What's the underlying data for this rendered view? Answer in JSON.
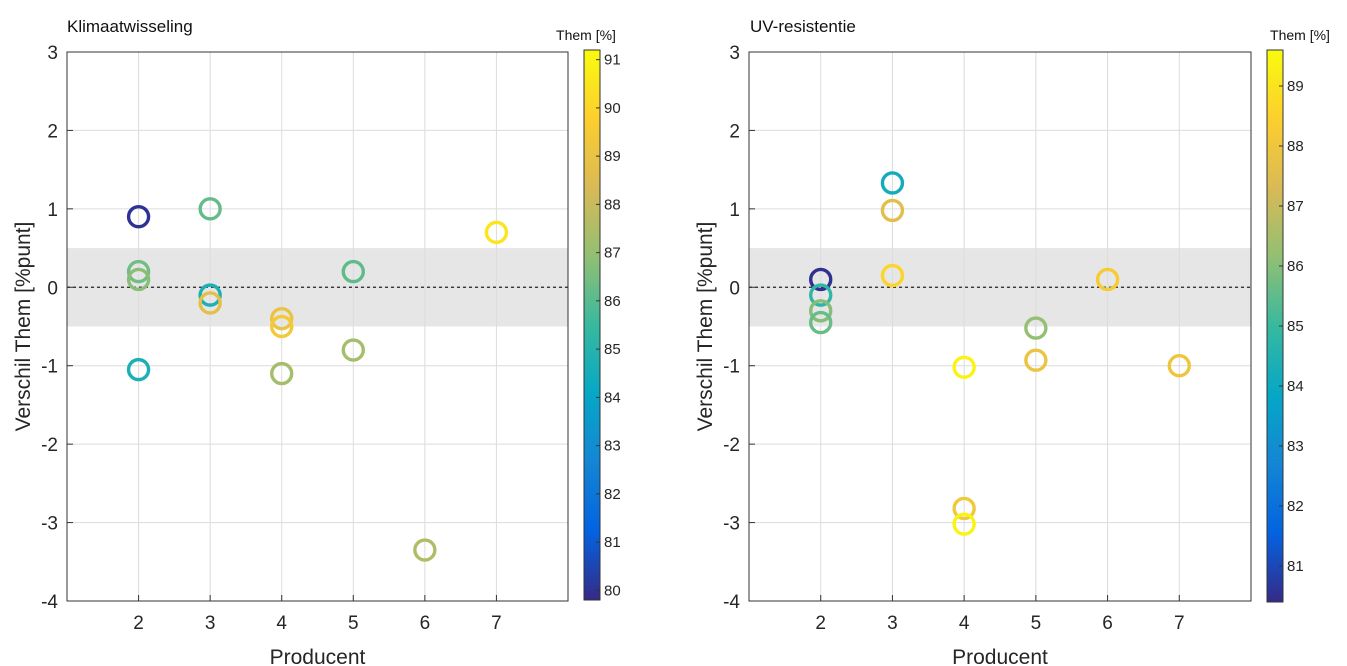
{
  "chart_data": [
    {
      "type": "scatter",
      "title": "Klimaatwisseling",
      "xlabel": "Producent",
      "ylabel": "Verschil Them [%punt]",
      "xlim": [
        1,
        8
      ],
      "ylim": [
        -4,
        3
      ],
      "xticks": [
        "2",
        "3",
        "4",
        "5",
        "6",
        "7"
      ],
      "yticks": [
        "3",
        "2",
        "1",
        "0",
        "-1",
        "-2",
        "-3",
        "-4"
      ],
      "grid": true,
      "reference_band": [
        -0.5,
        0.5
      ],
      "reference_line": 0,
      "colorbar": {
        "title": "Them [%]",
        "min": 79.8,
        "max": 91.2,
        "ticks": [
          "91",
          "90",
          "89",
          "88",
          "87",
          "86",
          "85",
          "84",
          "83",
          "82",
          "81",
          "80"
        ]
      },
      "points": [
        {
          "x": 2,
          "y": 0.9,
          "them": 80
        },
        {
          "x": 2,
          "y": 0.2,
          "them": 86.4
        },
        {
          "x": 2,
          "y": 0.1,
          "them": 86.8
        },
        {
          "x": 2,
          "y": -1.05,
          "them": 84.7
        },
        {
          "x": 3,
          "y": 1.0,
          "them": 86.2
        },
        {
          "x": 3,
          "y": -0.1,
          "them": 84.7
        },
        {
          "x": 3,
          "y": -0.2,
          "them": 88.8
        },
        {
          "x": 4,
          "y": -0.4,
          "them": 89
        },
        {
          "x": 4,
          "y": -0.5,
          "them": 89.4
        },
        {
          "x": 4,
          "y": -1.1,
          "them": 87.3
        },
        {
          "x": 5,
          "y": 0.2,
          "them": 86.1
        },
        {
          "x": 5,
          "y": -0.8,
          "them": 87.3
        },
        {
          "x": 6,
          "y": -3.35,
          "them": 87.5
        },
        {
          "x": 7,
          "y": 0.7,
          "them": 90.5
        }
      ]
    },
    {
      "type": "scatter",
      "title": "UV-resistentie",
      "xlabel": "Producent",
      "ylabel": "Verschil Them [%punt]",
      "xlim": [
        1,
        8
      ],
      "ylim": [
        -4,
        3
      ],
      "xticks": [
        "2",
        "3",
        "4",
        "5",
        "6",
        "7"
      ],
      "yticks": [
        "3",
        "2",
        "1",
        "0",
        "-1",
        "-2",
        "-3",
        "-4"
      ],
      "grid": true,
      "reference_band": [
        -0.5,
        0.5
      ],
      "reference_line": 0,
      "colorbar": {
        "title": "Them [%]",
        "min": 80.4,
        "max": 89.6,
        "ticks": [
          "89",
          "88",
          "87",
          "86",
          "85",
          "84",
          "83",
          "82",
          "81"
        ]
      },
      "points": [
        {
          "x": 2,
          "y": 0.1,
          "them": 80.5
        },
        {
          "x": 2,
          "y": -0.1,
          "them": 84.8
        },
        {
          "x": 2,
          "y": -0.3,
          "them": 86
        },
        {
          "x": 2,
          "y": -0.45,
          "them": 85.6
        },
        {
          "x": 3,
          "y": 1.33,
          "them": 84.2
        },
        {
          "x": 3,
          "y": 0.98,
          "them": 87.6
        },
        {
          "x": 3,
          "y": 0.15,
          "them": 88.6
        },
        {
          "x": 4,
          "y": -1.02,
          "them": 89.4
        },
        {
          "x": 4,
          "y": -2.82,
          "them": 88.1
        },
        {
          "x": 4,
          "y": -3.02,
          "them": 89.4
        },
        {
          "x": 5,
          "y": -0.52,
          "them": 86.2
        },
        {
          "x": 5,
          "y": -0.93,
          "them": 87.9
        },
        {
          "x": 6,
          "y": 0.1,
          "them": 88.3
        },
        {
          "x": 7,
          "y": -1.0,
          "them": 88
        }
      ]
    }
  ]
}
